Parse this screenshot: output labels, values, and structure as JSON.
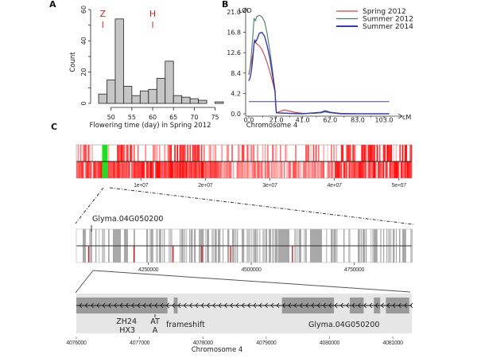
{
  "chart_data": [
    {
      "panel": "A",
      "type": "bar",
      "subtype": "histogram",
      "xlabel": "Flowering time (day) in Spring 2012",
      "ylabel": "Count",
      "bin_width": 2,
      "bin_starts": [
        47,
        49,
        51,
        53,
        55,
        57,
        59,
        61,
        63,
        65,
        67,
        69,
        71,
        73,
        75
      ],
      "values": [
        6,
        15,
        54,
        11,
        5,
        8,
        9,
        16,
        27,
        5,
        4,
        3,
        2,
        0,
        1
      ],
      "xticks": [
        "50",
        "55",
        "60",
        "65",
        "70",
        "75"
      ],
      "xlim": [
        47,
        77
      ],
      "yticks": [
        "0",
        "20",
        "40",
        "60"
      ],
      "ylim": [
        0,
        60
      ],
      "annotations": [
        {
          "text": "Z",
          "x": 48,
          "color": "#cc2222"
        },
        {
          "text": "H",
          "x": 60,
          "color": "#cc2222"
        }
      ]
    },
    {
      "panel": "B",
      "type": "line",
      "xlabel": "Chromosome 4",
      "xunit": "cM",
      "ylabel": "LOD",
      "xticks": [
        "0.0",
        "21.0",
        "41.0",
        "62.0",
        "83.0",
        "103.0"
      ],
      "yticks": [
        "0.0",
        "4.2",
        "8.4",
        "12.6",
        "16.8",
        "21.0"
      ],
      "xlim": [
        0,
        110
      ],
      "ylim": [
        0,
        21
      ],
      "threshold": 2.5,
      "threshold_color": "#4444aa",
      "series": [
        {
          "name": "Spring 2012",
          "color": "#d84040",
          "x": [
            0,
            1,
            2,
            3,
            4,
            5,
            6,
            8,
            10,
            12,
            14,
            16,
            18,
            20,
            20.5,
            21,
            24,
            27,
            30,
            35,
            41,
            50,
            55,
            58,
            62,
            70,
            83,
            103,
            110
          ],
          "y": [
            8.2,
            9.5,
            10.8,
            12.2,
            14.5,
            14.8,
            14.4,
            14.0,
            13.2,
            12.0,
            10.5,
            8.7,
            6.7,
            4.5,
            2.0,
            0.2,
            0.5,
            0.8,
            0.6,
            0.3,
            0.1,
            0.1,
            0.2,
            0.5,
            0.3,
            0.1,
            0.0,
            0.0,
            0.0
          ]
        },
        {
          "name": "Summer 2012",
          "color": "#4a7a6a",
          "x": [
            0,
            1,
            2,
            3,
            4,
            5,
            6,
            8,
            10,
            12,
            14,
            16,
            18,
            20,
            20.5,
            21,
            30,
            41,
            55,
            58,
            62,
            70,
            83,
            103,
            110
          ],
          "y": [
            8.0,
            9.5,
            12.5,
            16.0,
            19.6,
            19.2,
            20.0,
            20.3,
            20.0,
            19.0,
            16.5,
            13.0,
            9.0,
            4.8,
            2.0,
            0.2,
            0.1,
            0.0,
            0.2,
            0.4,
            0.2,
            0.0,
            0.0,
            0.0,
            0.0
          ]
        },
        {
          "name": "Summer 2014",
          "color": "#3a3aaa",
          "x": [
            0,
            1,
            2,
            3,
            4,
            4.5,
            5,
            6,
            8,
            10,
            12,
            14,
            16,
            18,
            20,
            20.5,
            21,
            30,
            41,
            55,
            58,
            60,
            62,
            70,
            83,
            103,
            110
          ],
          "y": [
            6.8,
            7.5,
            9.0,
            11.5,
            14.5,
            15.3,
            14.8,
            15.2,
            16.6,
            16.8,
            16.0,
            14.0,
            11.5,
            8.0,
            4.5,
            2.0,
            0.2,
            0.1,
            0.0,
            0.3,
            0.6,
            0.5,
            0.3,
            0.0,
            0.0,
            0.0,
            0.0
          ]
        }
      ],
      "legend_position": "top-right"
    },
    {
      "panel": "C-chromosome",
      "type": "heatmap",
      "xticks": [
        "1e+07",
        "2e+07",
        "3e+07",
        "4e+07",
        "5e+07"
      ],
      "xlim": [
        0,
        52000000
      ],
      "highlight_color": "#22dd22",
      "highlight_start": 4000000
    },
    {
      "panel": "C-region",
      "type": "heatmap",
      "label": "Glyma.04G050200",
      "xticks": [
        "4250000",
        "4500000",
        "4750000"
      ],
      "xlim": [
        4075000,
        4890000
      ],
      "red_marks": [
        4105000,
        4215000,
        4310000,
        4380000,
        4450000,
        4600000
      ]
    },
    {
      "panel": "C-gene",
      "type": "table",
      "xlabel": "Chromosome 4",
      "xticks": [
        "4076000",
        "4077000",
        "4078000",
        "4079000",
        "4080000",
        "4081000"
      ],
      "xlim": [
        4076000,
        4081300
      ],
      "gene_name": "Glyma.04G050200",
      "variant_labels": [
        "ZH24",
        "HX3"
      ],
      "variant_alleles": [
        {
          "text": "AT",
          "color": "#2233aa"
        },
        {
          "text": "A",
          "color": "#cc2222"
        }
      ],
      "variant_position": 4077150,
      "variant_effect": "frameshift",
      "exons": [
        [
          4076000,
          4077440
        ],
        [
          4077540,
          4077600
        ],
        [
          4079250,
          4080070
        ],
        [
          4080320,
          4080540
        ],
        [
          4080700,
          4080800
        ],
        [
          4080890,
          4081260
        ]
      ]
    }
  ],
  "panels": {
    "a": "A",
    "b": "B",
    "c": "C"
  },
  "colors": {
    "bar": "#c6c6c6",
    "heat_red": "#ff0000",
    "gray_strip": "#a8a8a8",
    "exon": "#9a9a9a",
    "gene_bg": "#e6e6e6"
  }
}
